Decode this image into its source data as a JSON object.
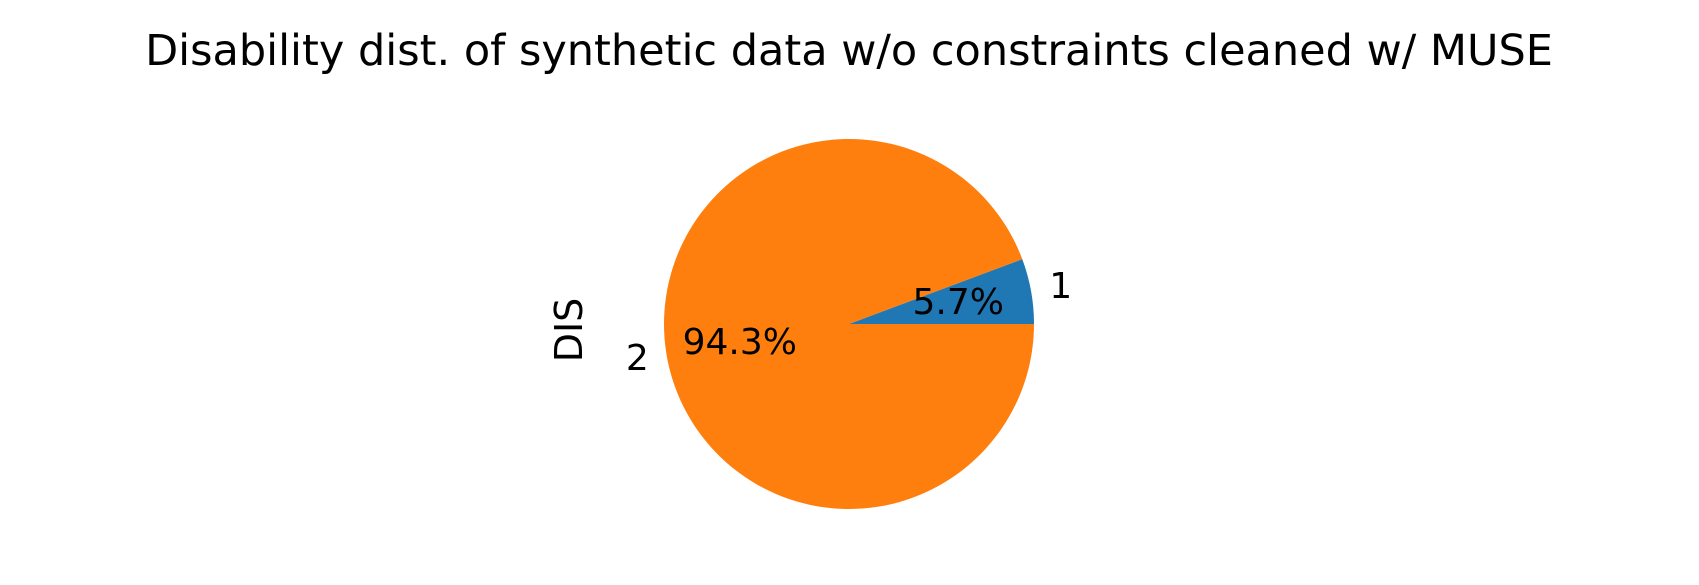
{
  "chart_data": {
    "type": "pie",
    "title": "Disability dist. of synthetic data w/o constraints cleaned w/ MUSE",
    "ylabel": "DIS",
    "categories": [
      "1",
      "2"
    ],
    "values": [
      5.7,
      94.3
    ],
    "percent_labels": [
      "5.7%",
      "94.3%"
    ],
    "colors": [
      "#1f77b4",
      "#ff7f0e"
    ],
    "start_angle_deg": 0,
    "direction": "counterclockwise"
  }
}
